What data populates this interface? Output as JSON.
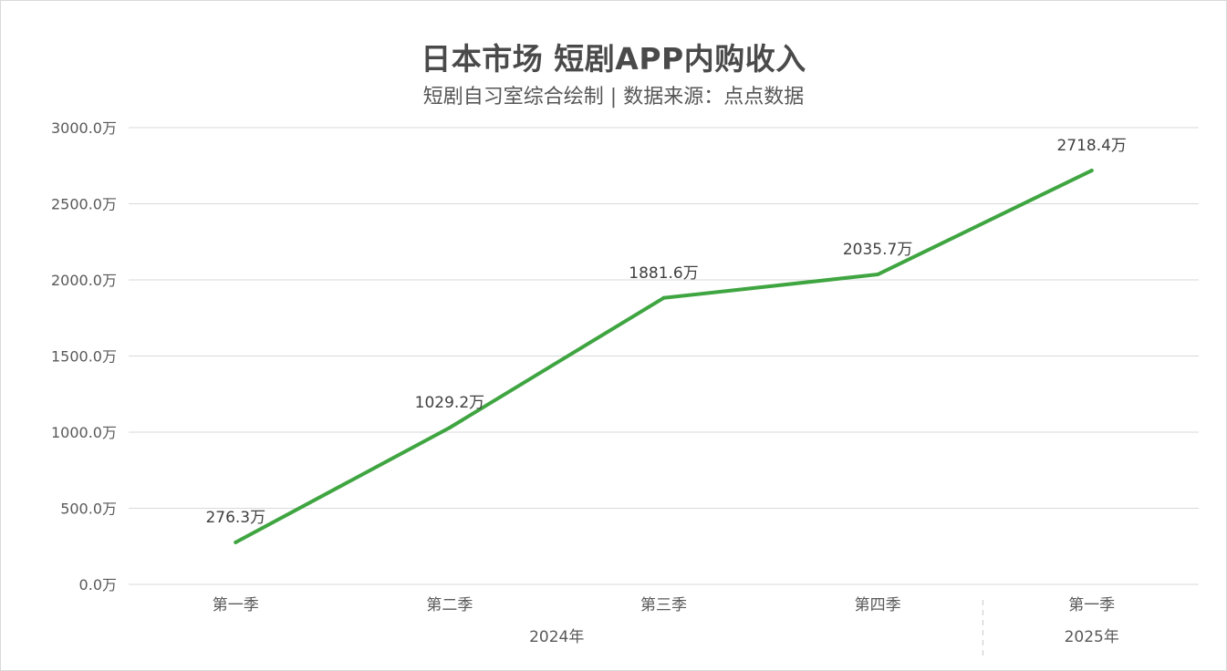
{
  "chart_data": {
    "type": "line",
    "title": "日本市场 短剧APP内购收入",
    "subtitle": "短剧自习室综合绘制 | 数据来源：点点数据",
    "categories": [
      "第一季",
      "第二季",
      "第三季",
      "第四季",
      "第一季"
    ],
    "groups": [
      {
        "label": "2024年",
        "span": 4
      },
      {
        "label": "2025年",
        "span": 1
      }
    ],
    "series": [
      {
        "values": [
          276.3,
          1029.2,
          1881.6,
          2035.7,
          2718.4
        ],
        "labels": [
          "276.3万",
          "1029.2万",
          "1881.6万",
          "2035.7万",
          "2718.4万"
        ],
        "color": "#3fa541"
      }
    ],
    "yticks": [
      "0.0万",
      "500.0万",
      "1000.0万",
      "1500.0万",
      "2000.0万",
      "2500.0万",
      "3000.0万"
    ],
    "ylim": [
      0,
      3000
    ],
    "grid": true,
    "legend": "none",
    "grid_color": "#d9d9d9"
  }
}
